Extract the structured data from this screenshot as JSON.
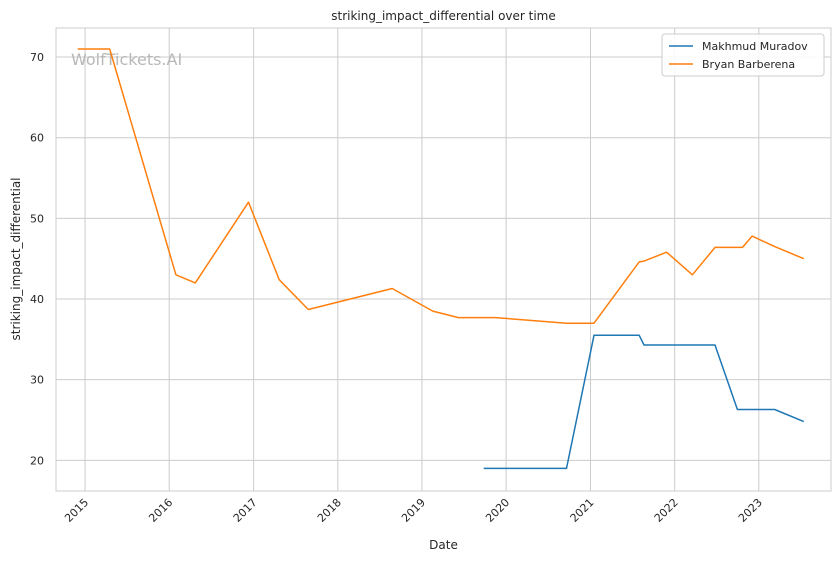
{
  "chart_data": {
    "type": "line",
    "title": "striking_impact_differential over time",
    "xlabel": "Date",
    "ylabel": "striking_impact_differential",
    "watermark": "WolfTickets.AI",
    "x_ticks": [
      "2015",
      "2016",
      "2017",
      "2018",
      "2019",
      "2020",
      "2021",
      "2022",
      "2023"
    ],
    "y_ticks": [
      20,
      30,
      40,
      50,
      60,
      70
    ],
    "xlim": [
      "2014-08-28",
      "2023-11-10"
    ],
    "ylim": [
      16.2,
      73.6
    ],
    "grid": true,
    "legend_position": "top-right",
    "series": [
      {
        "name": "Makhmud Muradov",
        "color": "#1f77b4",
        "points": [
          [
            "2019-09-26",
            19.0
          ],
          [
            "2020-09-19",
            19.0
          ],
          [
            "2021-01-16",
            35.5
          ],
          [
            "2021-07-31",
            35.5
          ],
          [
            "2021-08-21",
            34.3
          ],
          [
            "2022-06-25",
            34.3
          ],
          [
            "2022-09-30",
            26.3
          ],
          [
            "2023-03-11",
            26.3
          ],
          [
            "2023-07-15",
            24.8
          ]
        ]
      },
      {
        "name": "Bryan Barberena",
        "color": "#ff7f0e",
        "points": [
          [
            "2014-11-30",
            71.0
          ],
          [
            "2015-04-18",
            71.0
          ],
          [
            "2016-01-30",
            43.0
          ],
          [
            "2016-04-23",
            42.0
          ],
          [
            "2016-12-10",
            52.0
          ],
          [
            "2017-04-22",
            42.4
          ],
          [
            "2017-08-26",
            38.7
          ],
          [
            "2018-08-25",
            41.3
          ],
          [
            "2019-02-17",
            38.5
          ],
          [
            "2019-06-08",
            37.7
          ],
          [
            "2019-11-16",
            37.7
          ],
          [
            "2020-09-19",
            37.0
          ],
          [
            "2021-01-16",
            37.0
          ],
          [
            "2021-07-31",
            44.6
          ],
          [
            "2021-08-21",
            44.7
          ],
          [
            "2021-11-27",
            45.8
          ],
          [
            "2022-03-19",
            43.0
          ],
          [
            "2022-06-25",
            46.4
          ],
          [
            "2022-10-22",
            46.4
          ],
          [
            "2022-12-03",
            47.8
          ],
          [
            "2023-03-11",
            46.5
          ],
          [
            "2023-07-15",
            45.0
          ]
        ]
      }
    ]
  }
}
